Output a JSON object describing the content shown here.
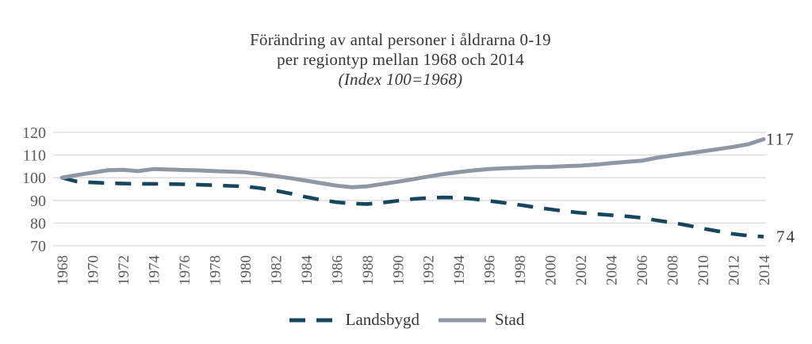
{
  "title": {
    "line1": "Förändring av antal personer i åldrarna 0-19",
    "line2": "per regiontyp mellan 1968 och 2014",
    "line3": "(Index 100=1968)"
  },
  "legend": {
    "items": [
      {
        "label": "Landsbygd",
        "style": "dashed",
        "color": "#16455e"
      },
      {
        "label": "Stad",
        "style": "solid",
        "color": "#8e97a4"
      }
    ]
  },
  "end_labels": {
    "stad": "117",
    "landsbygd": "74"
  },
  "colors": {
    "landsbygd": "#16455e",
    "stad": "#8e97a4",
    "gridline": "#d9d9d9",
    "tick_text": "#5a5a5a",
    "title_text": "#373737",
    "background": "#ffffff"
  },
  "chart_data": {
    "type": "line",
    "title": "Förändring av antal personer i åldrarna 0-19 per regiontyp mellan 1968 och 2014 (Index 100=1968)",
    "x": [
      1968,
      1969,
      1970,
      1971,
      1972,
      1973,
      1974,
      1975,
      1976,
      1977,
      1978,
      1979,
      1980,
      1981,
      1982,
      1983,
      1984,
      1985,
      1986,
      1987,
      1988,
      1989,
      1990,
      1991,
      1992,
      1993,
      1994,
      1995,
      1996,
      1997,
      1998,
      1999,
      2000,
      2001,
      2002,
      2003,
      2004,
      2005,
      2006,
      2007,
      2008,
      2009,
      2010,
      2011,
      2012,
      2013,
      2014
    ],
    "x_tick_labels": [
      "1968",
      "1970",
      "1972",
      "1974",
      "1976",
      "1978",
      "1980",
      "1982",
      "1984",
      "1986",
      "1988",
      "1990",
      "1992",
      "1994",
      "1996",
      "1998",
      "2000",
      "2002",
      "2004",
      "2006",
      "2008",
      "2010",
      "2012",
      "2014"
    ],
    "x_tick_step": 2,
    "y_ticks": [
      70,
      80,
      90,
      100,
      110,
      120
    ],
    "ylim": [
      70,
      120
    ],
    "grid": true,
    "legend_position": "bottom",
    "series": [
      {
        "name": "Landsbygd",
        "style": "dashed",
        "color": "#16455e",
        "values": [
          100,
          98.3,
          97.9,
          97.6,
          97.4,
          97.3,
          97.3,
          97.2,
          97.1,
          96.9,
          96.7,
          96.4,
          96.2,
          95.4,
          94.3,
          93,
          91.5,
          90.2,
          89.2,
          88.6,
          88.4,
          89,
          89.8,
          90.6,
          91.1,
          91.3,
          91.2,
          90.6,
          89.8,
          88.9,
          88,
          87,
          86.1,
          85.2,
          84.5,
          84,
          83.5,
          83,
          82.3,
          81.2,
          80.2,
          79,
          77.6,
          76.4,
          75.2,
          74.4,
          74
        ]
      },
      {
        "name": "Stad",
        "style": "solid",
        "color": "#8e97a4",
        "values": [
          100,
          101.2,
          102.2,
          103.3,
          103.5,
          102.9,
          103.8,
          103.6,
          103.4,
          103.2,
          102.9,
          102.7,
          102.4,
          101.6,
          100.7,
          99.8,
          98.7,
          97.6,
          96.5,
          95.8,
          96.2,
          97.2,
          98.2,
          99.3,
          100.5,
          101.6,
          102.5,
          103.2,
          103.8,
          104.2,
          104.4,
          104.7,
          104.8,
          105.1,
          105.3,
          105.8,
          106.4,
          107,
          107.5,
          108.8,
          109.8,
          110.7,
          111.6,
          112.6,
          113.6,
          114.8,
          117
        ]
      }
    ],
    "end_labels": [
      {
        "series": "Stad",
        "label": "117"
      },
      {
        "series": "Landsbygd",
        "label": "74"
      }
    ]
  }
}
